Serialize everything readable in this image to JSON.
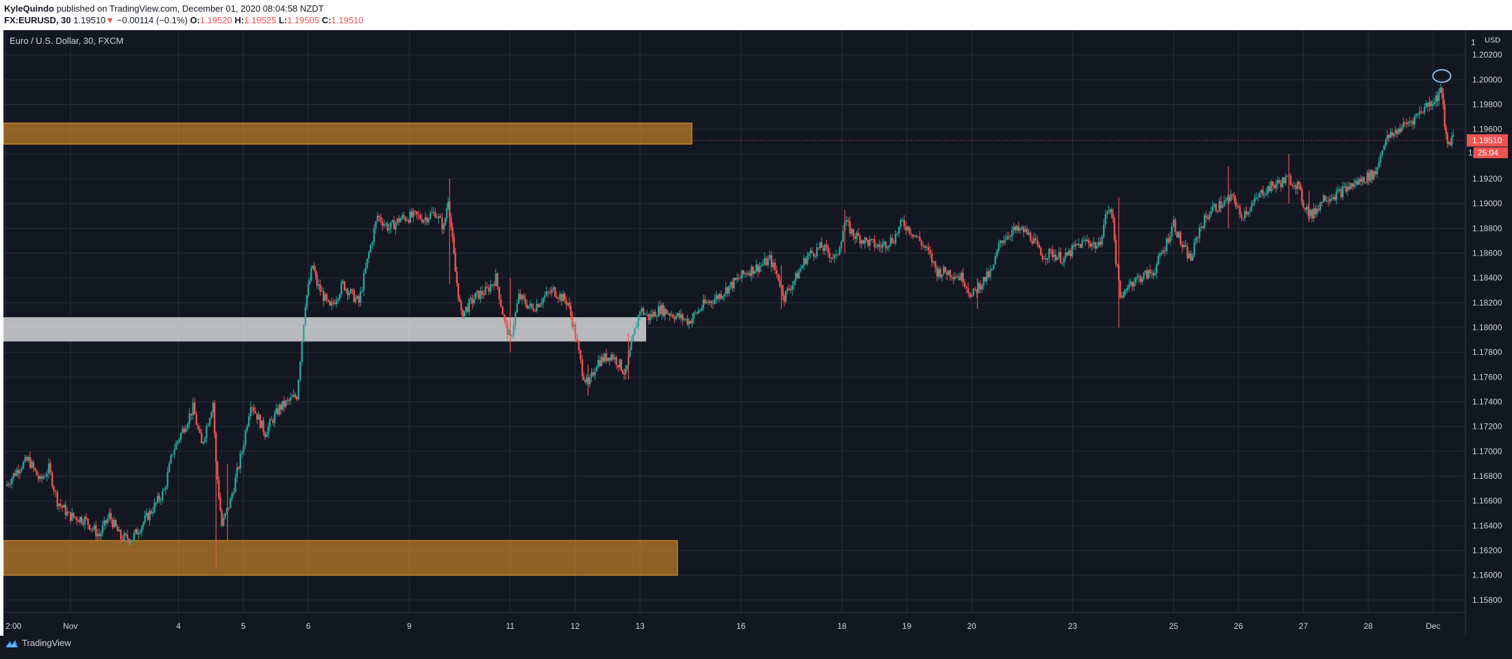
{
  "header": {
    "author": "KyleQuindo",
    "published_text": " published on TradingView.com, December 01, 2020 08:04:58 NZDT",
    "symbol": "FX:EURUSD, 30",
    "last": "1.19510",
    "change_arrow": "▼",
    "change": "−0.00114 (−0.1%)",
    "o_label": "O:",
    "o_value": "1.19520",
    "h_label": "H:",
    "h_value": "1.19525",
    "l_label": "L:",
    "l_value": "1.19505",
    "c_label": "C:",
    "c_value": "1.19510"
  },
  "legend": "Euro / U.S. Dollar, 30, FXCM",
  "brand": "TradingView",
  "colors": {
    "background": "#131722",
    "grid": "#2a2e39",
    "axis_text": "#d1d4dc",
    "up": "#26a69a",
    "down": "#ef5350",
    "zone_orange": "#f59e27",
    "zone_white": "#ffffff",
    "price_label": "#ef5350",
    "circle": "#8fb8de"
  },
  "chart_data": {
    "type": "candlestick",
    "currency_label": "USD",
    "ylim": [
      1.157,
      1.204
    ],
    "y_ticks": [
      "1.15800",
      "1.16000",
      "1.16200",
      "1.16400",
      "1.16600",
      "1.16800",
      "1.17000",
      "1.17200",
      "1.17400",
      "1.17600",
      "1.17800",
      "1.18000",
      "1.18200",
      "1.18400",
      "1.18600",
      "1.18800",
      "1.19000",
      "1.19200",
      "1.19400",
      "1.19600",
      "1.19800",
      "1.20000",
      "1.20200"
    ],
    "y_tick_top_partial": "1",
    "x_ticks": [
      {
        "label": "2:00",
        "pos": 0.0
      },
      {
        "label": "Nov",
        "pos": 4.5
      },
      {
        "label": "4",
        "pos": 12.0
      },
      {
        "label": "5",
        "pos": 16.5
      },
      {
        "label": "6",
        "pos": 21.0
      },
      {
        "label": "9",
        "pos": 28.0
      },
      {
        "label": "11",
        "pos": 35.0
      },
      {
        "label": "12",
        "pos": 39.5
      },
      {
        "label": "13",
        "pos": 44.0
      },
      {
        "label": "16",
        "pos": 51.0
      },
      {
        "label": "18",
        "pos": 58.0
      },
      {
        "label": "19",
        "pos": 62.5
      },
      {
        "label": "20",
        "pos": 67.0
      },
      {
        "label": "23",
        "pos": 74.0
      },
      {
        "label": "25",
        "pos": 81.0
      },
      {
        "label": "26",
        "pos": 85.5
      },
      {
        "label": "27",
        "pos": 90.0
      },
      {
        "label": "28",
        "pos": 94.5
      },
      {
        "label": "Dec",
        "pos": 99.0
      }
    ],
    "x_max": 101,
    "path": [
      [
        0.0,
        1.1672
      ],
      [
        1.0,
        1.1688
      ],
      [
        1.6,
        1.1693
      ],
      [
        2.4,
        1.1676
      ],
      [
        3.0,
        1.1686
      ],
      [
        3.6,
        1.166
      ],
      [
        4.4,
        1.1648
      ],
      [
        5.5,
        1.1645
      ],
      [
        6.5,
        1.1632
      ],
      [
        7.2,
        1.1648
      ],
      [
        8.0,
        1.163
      ],
      [
        8.8,
        1.163
      ],
      [
        10.0,
        1.165
      ],
      [
        11.0,
        1.1668
      ],
      [
        11.6,
        1.17
      ],
      [
        12.4,
        1.172
      ],
      [
        13.0,
        1.1735
      ],
      [
        13.6,
        1.1705
      ],
      [
        14.4,
        1.174
      ],
      [
        14.6,
        1.169
      ],
      [
        15.0,
        1.164
      ],
      [
        15.6,
        1.166
      ],
      [
        16.4,
        1.17
      ],
      [
        17.0,
        1.174
      ],
      [
        18.0,
        1.1715
      ],
      [
        19.0,
        1.1735
      ],
      [
        20.2,
        1.1745
      ],
      [
        20.8,
        1.182
      ],
      [
        21.3,
        1.185
      ],
      [
        21.6,
        1.1835
      ],
      [
        22.5,
        1.1815
      ],
      [
        23.4,
        1.1835
      ],
      [
        24.5,
        1.182
      ],
      [
        25.2,
        1.186
      ],
      [
        25.8,
        1.189
      ],
      [
        26.6,
        1.188
      ],
      [
        27.4,
        1.1888
      ],
      [
        28.4,
        1.189
      ],
      [
        29.0,
        1.1888
      ],
      [
        29.8,
        1.1893
      ],
      [
        30.4,
        1.188
      ],
      [
        30.7,
        1.1905
      ],
      [
        31.2,
        1.1845
      ],
      [
        31.6,
        1.181
      ],
      [
        32.6,
        1.1825
      ],
      [
        33.4,
        1.183
      ],
      [
        34.0,
        1.184
      ],
      [
        34.6,
        1.1805
      ],
      [
        35.0,
        1.179
      ],
      [
        35.6,
        1.1825
      ],
      [
        36.5,
        1.1815
      ],
      [
        37.4,
        1.1825
      ],
      [
        38.0,
        1.183
      ],
      [
        39.0,
        1.182
      ],
      [
        39.4,
        1.18
      ],
      [
        40.0,
        1.1765
      ],
      [
        40.4,
        1.1752
      ],
      [
        41.0,
        1.1772
      ],
      [
        42.0,
        1.1778
      ],
      [
        42.6,
        1.177
      ],
      [
        43.0,
        1.1762
      ],
      [
        43.4,
        1.1785
      ],
      [
        44.0,
        1.1815
      ],
      [
        44.6,
        1.1808
      ],
      [
        45.4,
        1.1815
      ],
      [
        46.4,
        1.181
      ],
      [
        47.4,
        1.1805
      ],
      [
        48.4,
        1.1818
      ],
      [
        49.4,
        1.1825
      ],
      [
        50.4,
        1.1835
      ],
      [
        51.4,
        1.1845
      ],
      [
        52.4,
        1.185
      ],
      [
        53.0,
        1.1855
      ],
      [
        53.6,
        1.184
      ],
      [
        54.0,
        1.1825
      ],
      [
        54.8,
        1.184
      ],
      [
        55.6,
        1.1858
      ],
      [
        56.6,
        1.1865
      ],
      [
        57.6,
        1.1855
      ],
      [
        58.2,
        1.1885
      ],
      [
        58.8,
        1.1875
      ],
      [
        59.6,
        1.187
      ],
      [
        60.6,
        1.1865
      ],
      [
        61.6,
        1.1872
      ],
      [
        62.2,
        1.1885
      ],
      [
        62.8,
        1.1878
      ],
      [
        63.4,
        1.187
      ],
      [
        64.0,
        1.186
      ],
      [
        64.6,
        1.1845
      ],
      [
        65.4,
        1.1845
      ],
      [
        66.4,
        1.184
      ],
      [
        67.0,
        1.1825
      ],
      [
        67.6,
        1.1835
      ],
      [
        68.4,
        1.1845
      ],
      [
        69.0,
        1.187
      ],
      [
        69.8,
        1.1878
      ],
      [
        70.6,
        1.1878
      ],
      [
        71.2,
        1.1872
      ],
      [
        71.8,
        1.1858
      ],
      [
        72.6,
        1.186
      ],
      [
        73.4,
        1.1855
      ],
      [
        74.2,
        1.1865
      ],
      [
        75.0,
        1.187
      ],
      [
        75.8,
        1.1865
      ],
      [
        76.4,
        1.1895
      ],
      [
        76.8,
        1.189
      ],
      [
        77.0,
        1.1855
      ],
      [
        77.4,
        1.182
      ],
      [
        77.8,
        1.1835
      ],
      [
        78.6,
        1.184
      ],
      [
        79.6,
        1.1845
      ],
      [
        80.4,
        1.1865
      ],
      [
        81.0,
        1.1885
      ],
      [
        81.6,
        1.1865
      ],
      [
        82.2,
        1.1855
      ],
      [
        82.8,
        1.188
      ],
      [
        83.6,
        1.1895
      ],
      [
        84.4,
        1.19
      ],
      [
        85.2,
        1.1905
      ],
      [
        85.6,
        1.189
      ],
      [
        86.4,
        1.1898
      ],
      [
        87.2,
        1.191
      ],
      [
        88.0,
        1.1915
      ],
      [
        89.0,
        1.192
      ],
      [
        89.6,
        1.1915
      ],
      [
        90.0,
        1.19
      ],
      [
        90.6,
        1.189
      ],
      [
        91.4,
        1.1905
      ],
      [
        92.4,
        1.1908
      ],
      [
        93.4,
        1.1915
      ],
      [
        94.2,
        1.192
      ],
      [
        95.0,
        1.1925
      ],
      [
        95.6,
        1.195
      ],
      [
        96.6,
        1.196
      ],
      [
        97.6,
        1.1968
      ],
      [
        98.4,
        1.1978
      ],
      [
        99.2,
        1.1985
      ],
      [
        99.6,
        1.1992
      ],
      [
        99.8,
        1.196
      ],
      [
        100.0,
        1.1948
      ],
      [
        100.4,
        1.1955
      ]
    ],
    "spikes": [
      [
        14.6,
        1.1605,
        1.1715
      ],
      [
        15.4,
        1.1628,
        1.169
      ],
      [
        30.8,
        1.1835,
        1.192
      ],
      [
        35.0,
        1.178,
        1.184
      ],
      [
        40.4,
        1.1745,
        1.177
      ],
      [
        43.2,
        1.1758,
        1.1795
      ],
      [
        53.8,
        1.1815,
        1.185
      ],
      [
        58.2,
        1.186,
        1.1895
      ],
      [
        67.4,
        1.1815,
        1.184
      ],
      [
        77.2,
        1.18,
        1.1905
      ],
      [
        84.8,
        1.188,
        1.193
      ],
      [
        89.0,
        1.19,
        1.194
      ],
      [
        90.4,
        1.1885,
        1.191
      ]
    ],
    "zones": [
      {
        "color": "orange",
        "x_start": -0.3,
        "x_end": 47.6,
        "y_top": 1.1965,
        "y_bottom": 1.1948
      },
      {
        "color": "white",
        "x_start": -0.3,
        "x_end": 44.4,
        "y_top": 1.1808,
        "y_bottom": 1.1789
      },
      {
        "color": "orange",
        "x_start": -0.3,
        "x_end": 46.6,
        "y_top": 1.1628,
        "y_bottom": 1.16
      }
    ],
    "current_price": {
      "value": 1.1951,
      "label": "1.19510",
      "countdown": "25:04",
      "countdown_prefix": "1."
    },
    "circle_annotation": {
      "x": 99.6,
      "y": 1.2003
    }
  }
}
